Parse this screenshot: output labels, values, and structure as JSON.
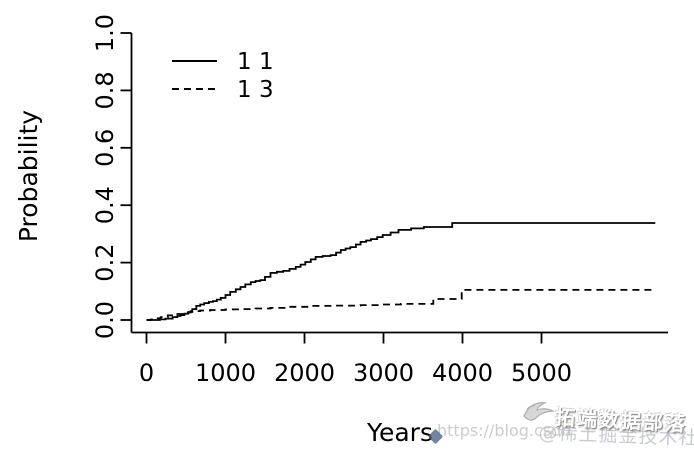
{
  "chart_data": {
    "type": "line",
    "subtype": "step",
    "title": "",
    "xlabel": "Years",
    "ylabel": "Probability",
    "xlim": [
      0,
      6500
    ],
    "ylim": [
      0.0,
      1.0
    ],
    "grid": false,
    "x_ticks": [
      0,
      1000,
      2000,
      3000,
      4000,
      5000
    ],
    "x_tick_labels": [
      "0",
      "1000",
      "2000",
      "3000",
      "4000",
      "5000"
    ],
    "y_ticks": [
      0.0,
      0.2,
      0.4,
      0.6,
      0.8,
      1.0
    ],
    "y_tick_labels": [
      "0.0",
      "0.2",
      "0.4",
      "0.6",
      "0.8",
      "1.0"
    ],
    "legend": {
      "position": "top-left-inside",
      "entries": [
        {
          "label": "1 1",
          "line_style": "solid"
        },
        {
          "label": "1 3",
          "line_style": "dashed"
        }
      ]
    },
    "series": [
      {
        "name": "1 1",
        "line_style": "solid",
        "color": "#000000",
        "points": [
          [
            0,
            0
          ],
          [
            170,
            0.002
          ],
          [
            240,
            0.005
          ],
          [
            330,
            0.01
          ],
          [
            390,
            0.014
          ],
          [
            430,
            0.017
          ],
          [
            480,
            0.022
          ],
          [
            530,
            0.028
          ],
          [
            580,
            0.038
          ],
          [
            630,
            0.049
          ],
          [
            680,
            0.054
          ],
          [
            730,
            0.059
          ],
          [
            790,
            0.063
          ],
          [
            840,
            0.066
          ],
          [
            890,
            0.071
          ],
          [
            940,
            0.077
          ],
          [
            1000,
            0.087
          ],
          [
            1060,
            0.098
          ],
          [
            1130,
            0.107
          ],
          [
            1190,
            0.115
          ],
          [
            1250,
            0.124
          ],
          [
            1320,
            0.132
          ],
          [
            1380,
            0.136
          ],
          [
            1440,
            0.139
          ],
          [
            1500,
            0.15
          ],
          [
            1570,
            0.164
          ],
          [
            1650,
            0.168
          ],
          [
            1730,
            0.171
          ],
          [
            1810,
            0.178
          ],
          [
            1890,
            0.185
          ],
          [
            1950,
            0.193
          ],
          [
            2010,
            0.202
          ],
          [
            2080,
            0.211
          ],
          [
            2140,
            0.22
          ],
          [
            2230,
            0.223
          ],
          [
            2330,
            0.226
          ],
          [
            2400,
            0.235
          ],
          [
            2460,
            0.244
          ],
          [
            2520,
            0.249
          ],
          [
            2580,
            0.254
          ],
          [
            2650,
            0.263
          ],
          [
            2710,
            0.272
          ],
          [
            2780,
            0.277
          ],
          [
            2840,
            0.282
          ],
          [
            2920,
            0.289
          ],
          [
            2990,
            0.296
          ],
          [
            3090,
            0.305
          ],
          [
            3190,
            0.314
          ],
          [
            3350,
            0.319
          ],
          [
            3510,
            0.324
          ],
          [
            3870,
            0.338
          ],
          [
            6440,
            0.338
          ]
        ]
      },
      {
        "name": "1 3",
        "line_style": "dashed",
        "color": "#000000",
        "points": [
          [
            0,
            0
          ],
          [
            60,
            0.002
          ],
          [
            120,
            0.006
          ],
          [
            180,
            0.01
          ],
          [
            270,
            0.016
          ],
          [
            370,
            0.021
          ],
          [
            460,
            0.026
          ],
          [
            560,
            0.031
          ],
          [
            680,
            0.033
          ],
          [
            810,
            0.035
          ],
          [
            1000,
            0.037
          ],
          [
            1190,
            0.038
          ],
          [
            1380,
            0.04
          ],
          [
            1570,
            0.042
          ],
          [
            1820,
            0.046
          ],
          [
            2080,
            0.049
          ],
          [
            2400,
            0.05
          ],
          [
            2710,
            0.052
          ],
          [
            2960,
            0.054
          ],
          [
            3220,
            0.056
          ],
          [
            3630,
            0.073
          ],
          [
            3990,
            0.105
          ],
          [
            6440,
            0.105
          ]
        ]
      }
    ]
  },
  "watermark": {
    "brand_text": "拓端数据部落",
    "community_text": "@稀土掘金技术社区",
    "url_text": "https://blog.csdn",
    "bird_logo": "bird-logo-icon",
    "gem_logo": "gem-logo-icon"
  },
  "colors": {
    "axis": "#000000",
    "background": "#ffffff",
    "watermark_gray": "#c7c7c9"
  }
}
